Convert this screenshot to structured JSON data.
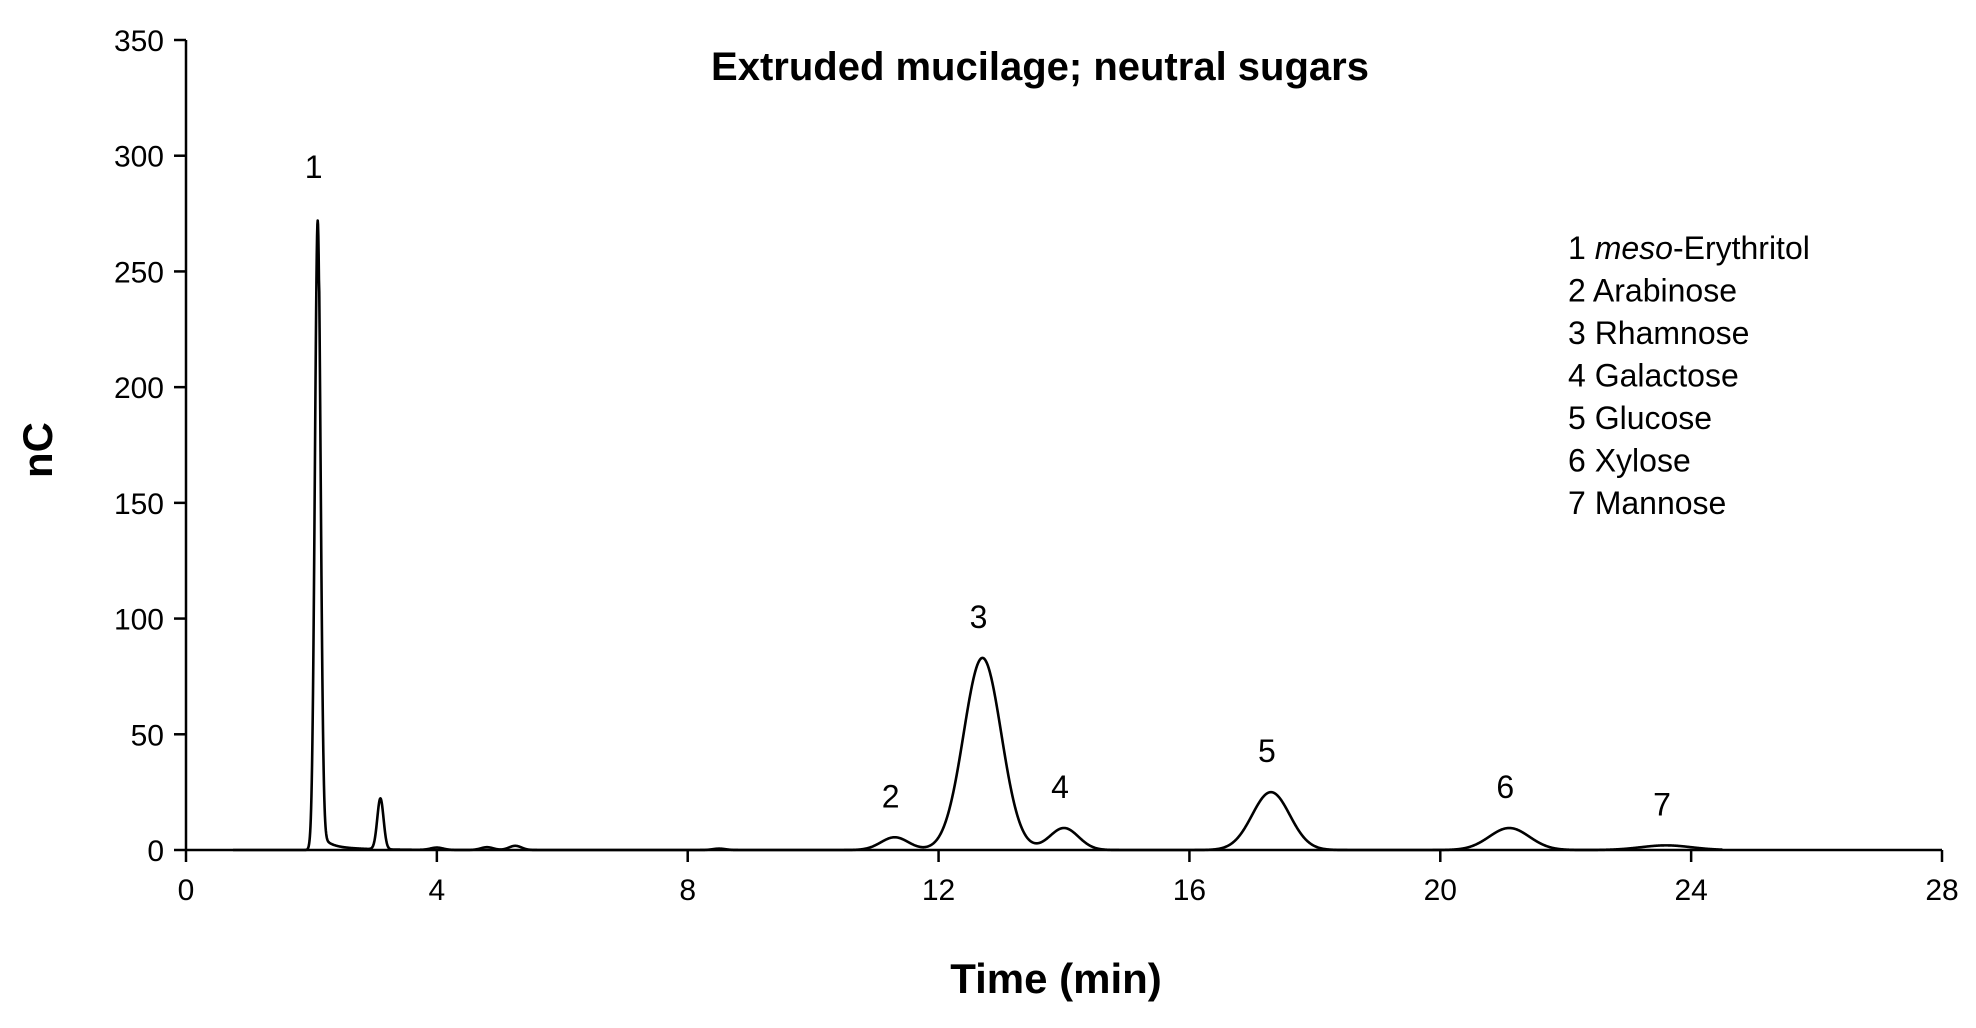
{
  "chart_data": {
    "type": "line",
    "title": "Extruded mucilage; neutral sugars",
    "xlabel": "Time (min)",
    "ylabel": "nC",
    "xlim": [
      0,
      28
    ],
    "ylim": [
      0,
      350
    ],
    "x_ticks": [
      "0",
      "4",
      "8",
      "12",
      "16",
      "20",
      "24",
      "28"
    ],
    "y_ticks": [
      "0",
      "50",
      "100",
      "150",
      "200",
      "250",
      "300",
      "350"
    ],
    "grid": false,
    "legend_position": "top-right",
    "peaks": [
      {
        "label": "1",
        "time": 2.1,
        "height": 272
      },
      {
        "label": "2",
        "time": 11.3,
        "height": 5.5
      },
      {
        "label": "3",
        "time": 12.7,
        "height": 83
      },
      {
        "label": "4",
        "time": 14.0,
        "height": 9.5
      },
      {
        "label": "5",
        "time": 17.3,
        "height": 25
      },
      {
        "label": "6",
        "time": 21.1,
        "height": 9.5
      },
      {
        "label": "7",
        "time": 23.6,
        "height": 2
      }
    ],
    "minor_peaks": [
      {
        "time": 3.1,
        "height": 22
      },
      {
        "time": 4.0,
        "height": 1
      },
      {
        "time": 4.8,
        "height": 1.2
      },
      {
        "time": 5.25,
        "height": 1.8
      },
      {
        "time": 8.5,
        "height": 0.6
      }
    ],
    "legend": {
      "items": [
        {
          "number": "1",
          "italic": "meso",
          "name": "-Erythritol"
        },
        {
          "number": "2",
          "italic": "",
          "name": "Arabinose"
        },
        {
          "number": "3",
          "italic": "",
          "name": "Rhamnose"
        },
        {
          "number": "4",
          "italic": "",
          "name": "Galactose"
        },
        {
          "number": "5",
          "italic": "",
          "name": "Glucose"
        },
        {
          "number": "6",
          "italic": "",
          "name": "Xylose"
        },
        {
          "number": "7",
          "italic": "",
          "name": "Mannose"
        }
      ]
    }
  }
}
